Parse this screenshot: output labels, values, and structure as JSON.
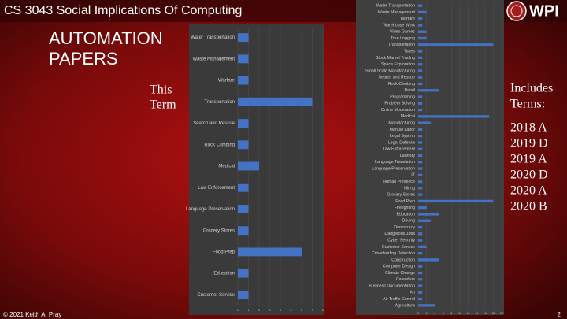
{
  "header": {
    "course": "CS 3043 Social Implications Of Computing",
    "logo": "WPI"
  },
  "slide": {
    "title": [
      "AUTOMATION",
      "PAPERS"
    ],
    "this_term": [
      "This",
      "Term"
    ],
    "includes": [
      "Includes",
      "Terms:"
    ],
    "terms": [
      "2018 A",
      "2019 D",
      "2019 A",
      "2020 D",
      "2020 A",
      "2020 B"
    ]
  },
  "footer": {
    "copyright": "© 2021 Keith A. Pray",
    "page": "2"
  },
  "chart_data": [
    {
      "type": "bar",
      "orientation": "horizontal",
      "color": "#4472c4",
      "grid": true,
      "categories": [
        "Water Transportation",
        "Waste Management",
        "Warfare",
        "Transportation",
        "Search and Rescue",
        "Rock Climbing",
        "Medical",
        "Law Enforcement",
        "Language Preservation",
        "Grocery Stores",
        "Food Prep",
        "Education",
        "Customer Service"
      ],
      "values": [
        1,
        1,
        1,
        7,
        1,
        1,
        2,
        1,
        1,
        1,
        6,
        1,
        1
      ],
      "xlim": [
        0,
        8
      ],
      "xticks": [
        0,
        1,
        2,
        3,
        4,
        5,
        6,
        7,
        8
      ]
    },
    {
      "type": "bar",
      "orientation": "horizontal",
      "color": "#4472c4",
      "grid": true,
      "categories": [
        "Water Transportation",
        "Waste Management",
        "Warfare",
        "Warehouse Work",
        "Video Games",
        "Tree Logging",
        "Transportation",
        "Taxes",
        "Stock Market Trading",
        "Space Exploration",
        "Small Scale Manufacturing",
        "Search and Rescue",
        "Rock Climbing",
        "Retail",
        "Programming",
        "Problem Solving",
        "Online Moderation",
        "Medical",
        "Manufacturing",
        "Manual Labor",
        "Legal System",
        "Legal Defense",
        "Law Enforcement",
        "Laundry",
        "Language Translation",
        "Language Preservation",
        "IT",
        "Human Presence",
        "Hiring",
        "Grocery Stores",
        "Food Prep",
        "Firefighting",
        "Education",
        "Driving",
        "Democracy",
        "Dangerous Jobs",
        "Cyber Security",
        "Customer Service",
        "Crowdsurfing Detection",
        "Construction",
        "Computer Design",
        "Climate Change",
        "Calendars",
        "Business Documentation",
        "Art",
        "Air Traffic Control",
        "Agriculture"
      ],
      "values": [
        1,
        2,
        1,
        1,
        2,
        2,
        18,
        1,
        1,
        1,
        1,
        1,
        1,
        5,
        1,
        1,
        1,
        17,
        3,
        1,
        1,
        1,
        1,
        1,
        1,
        1,
        1,
        1,
        1,
        1,
        18,
        2,
        5,
        3,
        1,
        1,
        1,
        2,
        1,
        5,
        1,
        1,
        1,
        1,
        1,
        1,
        4
      ],
      "xlim": [
        0,
        20
      ],
      "xticks": [
        0,
        2,
        4,
        6,
        8,
        10,
        12,
        14,
        16,
        18,
        20
      ]
    }
  ]
}
